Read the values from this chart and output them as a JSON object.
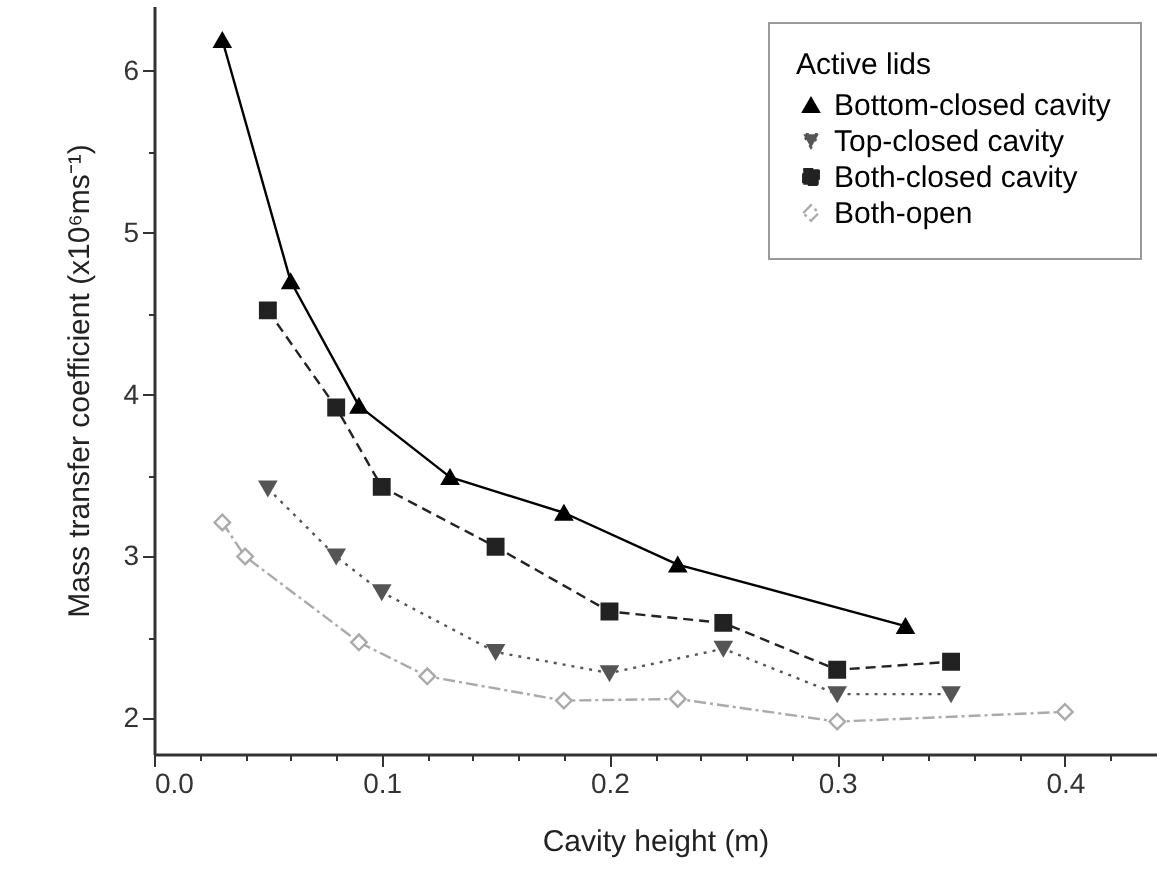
{
  "chart_data": {
    "type": "line",
    "xlabel": "Cavity height (m)",
    "ylabel": "Mass transfer coefficient (x10⁶ms⁻¹)",
    "legend_title": "Active lids",
    "legend": "top right",
    "grid": false,
    "xlim": [
      0,
      0.44
    ],
    "ylim": [
      1.78,
      6.4
    ],
    "xticks": [
      {
        "value": 0,
        "label": "0.0"
      },
      {
        "value": 0.02,
        "label": null
      },
      {
        "value": 0.04,
        "label": null
      },
      {
        "value": 0.06,
        "label": null
      },
      {
        "value": 0.08,
        "label": null
      },
      {
        "value": 0.1,
        "label": "0.1"
      },
      {
        "value": 0.12,
        "label": null
      },
      {
        "value": 0.14,
        "label": null
      },
      {
        "value": 0.16,
        "label": null
      },
      {
        "value": 0.18,
        "label": null
      },
      {
        "value": 0.2,
        "label": "0.2"
      },
      {
        "value": 0.22,
        "label": null
      },
      {
        "value": 0.24,
        "label": null
      },
      {
        "value": 0.26,
        "label": null
      },
      {
        "value": 0.28,
        "label": null
      },
      {
        "value": 0.3,
        "label": "0.3"
      },
      {
        "value": 0.32,
        "label": null
      },
      {
        "value": 0.34,
        "label": null
      },
      {
        "value": 0.36,
        "label": null
      },
      {
        "value": 0.38,
        "label": null
      },
      {
        "value": 0.4,
        "label": "0.4"
      },
      {
        "value": 0.42,
        "label": null
      }
    ],
    "yticks": [
      2,
      {
        "value": 2.5,
        "label": null
      },
      3,
      {
        "value": 3.5,
        "label": null
      },
      4,
      {
        "value": 4.5,
        "label": null
      },
      5,
      {
        "value": 5.5,
        "label": null
      },
      6
    ],
    "series": [
      {
        "name": "Bottom-closed cavity",
        "color": "#000000",
        "marker": "triangle-up",
        "line_style": "solid",
        "x": [
          0.03,
          0.06,
          0.09,
          0.13,
          0.18,
          0.23,
          0.33
        ],
        "values": [
          6.19,
          4.7,
          3.93,
          3.49,
          3.27,
          2.95,
          2.57
        ]
      },
      {
        "name": "Top-closed cavity",
        "color": "#555555",
        "marker": "triangle-down",
        "line_style": "dotted",
        "x": [
          0.05,
          0.08,
          0.1,
          0.15,
          0.2,
          0.25,
          0.3,
          0.35
        ],
        "values": [
          3.42,
          3.0,
          2.78,
          2.41,
          2.28,
          2.43,
          2.15,
          2.15
        ]
      },
      {
        "name": "Both-closed cavity",
        "color": "#222222",
        "marker": "square",
        "line_style": "dashed",
        "x": [
          0.05,
          0.08,
          0.1,
          0.15,
          0.2,
          0.25,
          0.3,
          0.35
        ],
        "values": [
          4.52,
          3.92,
          3.43,
          3.06,
          2.66,
          2.59,
          2.3,
          2.35
        ]
      },
      {
        "name": "Both-open",
        "color": "#aaaaaa",
        "marker": "diamond-open",
        "line_style": "dashdot",
        "x": [
          0.03,
          0.04,
          0.09,
          0.12,
          0.18,
          0.23,
          0.3,
          0.4
        ],
        "values": [
          3.21,
          3.0,
          2.47,
          2.26,
          2.11,
          2.12,
          1.98,
          2.04
        ]
      }
    ]
  }
}
